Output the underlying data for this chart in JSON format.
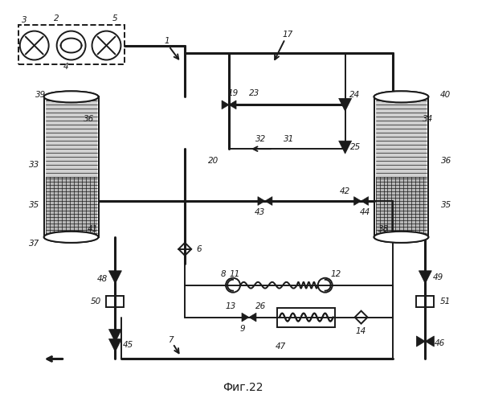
{
  "title": "Фиг.22",
  "bg_color": "#ffffff",
  "fg_color": "#1a1a1a",
  "lw": 1.4,
  "lw_thick": 2.2
}
